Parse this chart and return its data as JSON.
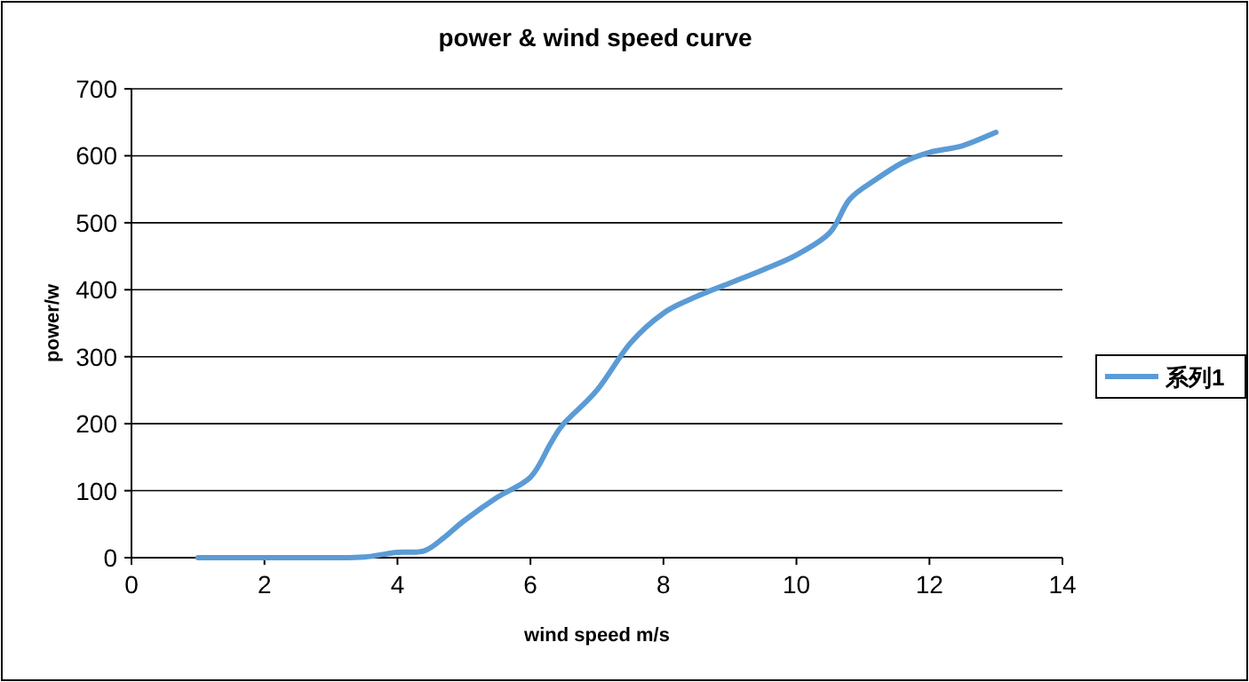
{
  "chart_data": {
    "type": "line",
    "title": "power & wind speed curve",
    "xlabel": "wind speed m/s",
    "ylabel": "power/w",
    "xlim": [
      0,
      14
    ],
    "xticks": [
      0,
      2,
      4,
      6,
      8,
      10,
      12,
      14
    ],
    "ylim": [
      0,
      700
    ],
    "yticks": [
      0,
      100,
      200,
      300,
      400,
      500,
      600,
      700
    ],
    "grid": "y",
    "legend": "right",
    "series": [
      {
        "name": "系列1",
        "color": "#5b9bd5",
        "x": [
          1,
          2,
          3,
          3.5,
          4,
          4.4,
          4.7,
          5,
          5.5,
          6,
          6.3,
          6.5,
          7,
          7.5,
          8,
          8.5,
          9,
          9.5,
          10,
          10.5,
          10.8,
          11.2,
          11.6,
          12,
          12.5,
          13
        ],
        "values": [
          0,
          0,
          0,
          1,
          8,
          10,
          30,
          55,
          90,
          120,
          170,
          200,
          250,
          320,
          365,
          390,
          410,
          430,
          452,
          485,
          535,
          565,
          590,
          605,
          615,
          635
        ]
      }
    ]
  }
}
